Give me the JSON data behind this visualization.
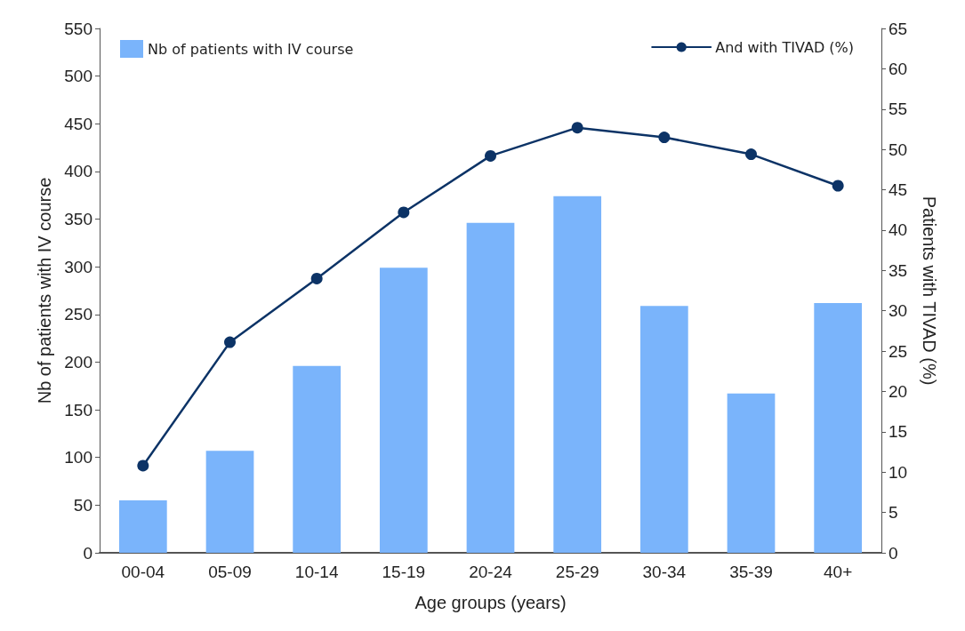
{
  "chart_data": {
    "type": "bar",
    "xlabel": "Age groups (years)",
    "ylabel": "Nb of patients with IV course",
    "y2label": "Patients with TIVAD (%)",
    "categories": [
      "00-04",
      "05-09",
      "10-14",
      "15-19",
      "20-24",
      "25-29",
      "30-34",
      "35-39",
      "40+"
    ],
    "series": [
      {
        "name": "Nb of patients with IV course",
        "color": "#7ab4fb",
        "values": [
          55,
          107,
          196,
          299,
          346,
          374,
          259,
          167,
          262
        ]
      },
      {
        "name": "And with TIVAD (%)",
        "type": "line",
        "axis": "y2",
        "color": "#0c3366",
        "marker": "circle",
        "line_style": "solid",
        "values": [
          10.8,
          26.1,
          34.0,
          42.2,
          49.2,
          52.7,
          51.5,
          49.4,
          45.5
        ]
      }
    ],
    "ylim": [
      0,
      550
    ],
    "yticks": [
      0,
      50,
      100,
      150,
      200,
      250,
      300,
      350,
      400,
      450,
      500,
      550
    ],
    "y2lim": [
      0,
      65
    ],
    "y2ticks": [
      0,
      5,
      10,
      15,
      20,
      25,
      30,
      35,
      40,
      45,
      50,
      55,
      60,
      65
    ],
    "grid": false,
    "legend": "top"
  }
}
